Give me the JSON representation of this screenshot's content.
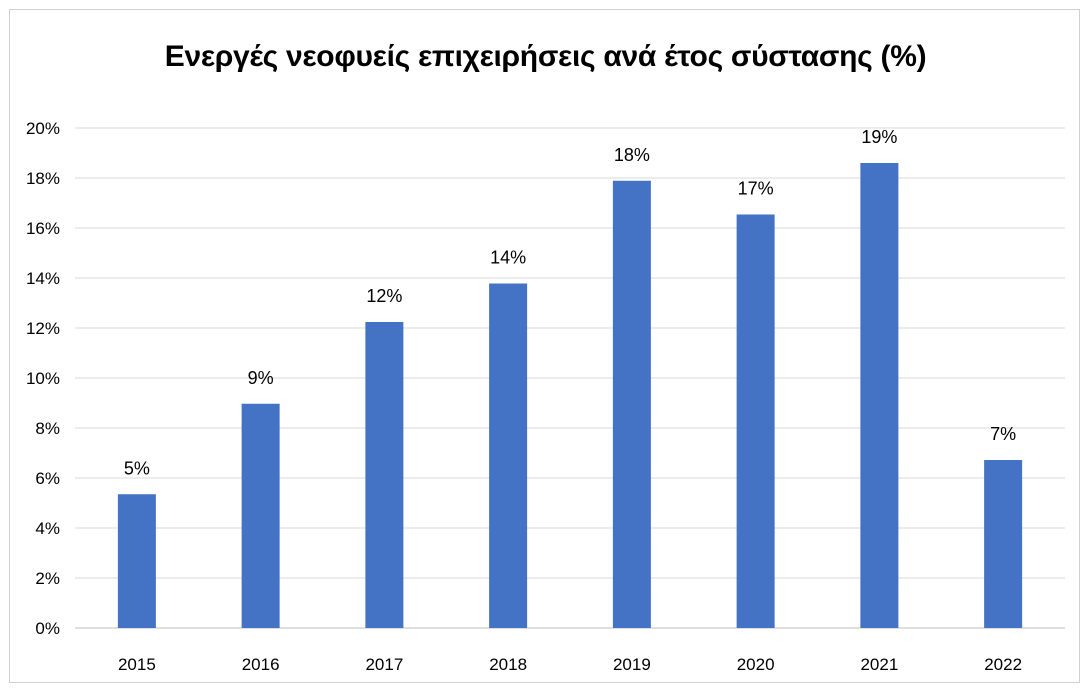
{
  "chart_data": {
    "type": "bar",
    "title": "Ενεργές νεοφυείς επιχειρήσεις ανά έτος σύστασης (%)",
    "xlabel": "",
    "ylabel": "",
    "categories": [
      "2015",
      "2016",
      "2017",
      "2018",
      "2019",
      "2020",
      "2021",
      "2022"
    ],
    "values": [
      5.35,
      8.97,
      12.24,
      13.78,
      17.89,
      16.54,
      18.6,
      6.72
    ],
    "data_labels": [
      "5%",
      "9%",
      "12%",
      "14%",
      "18%",
      "17%",
      "19%",
      "7%"
    ],
    "ylim": [
      0,
      20
    ],
    "yticks": [
      0,
      2,
      4,
      6,
      8,
      10,
      12,
      14,
      16,
      18,
      20
    ],
    "ytick_labels": [
      "0%",
      "2%",
      "4%",
      "6%",
      "8%",
      "10%",
      "12%",
      "14%",
      "16%",
      "18%",
      "20%"
    ],
    "grid": true,
    "legend": "none",
    "bar_color": "#4472C4",
    "grid_color": "#d9d9d9"
  }
}
